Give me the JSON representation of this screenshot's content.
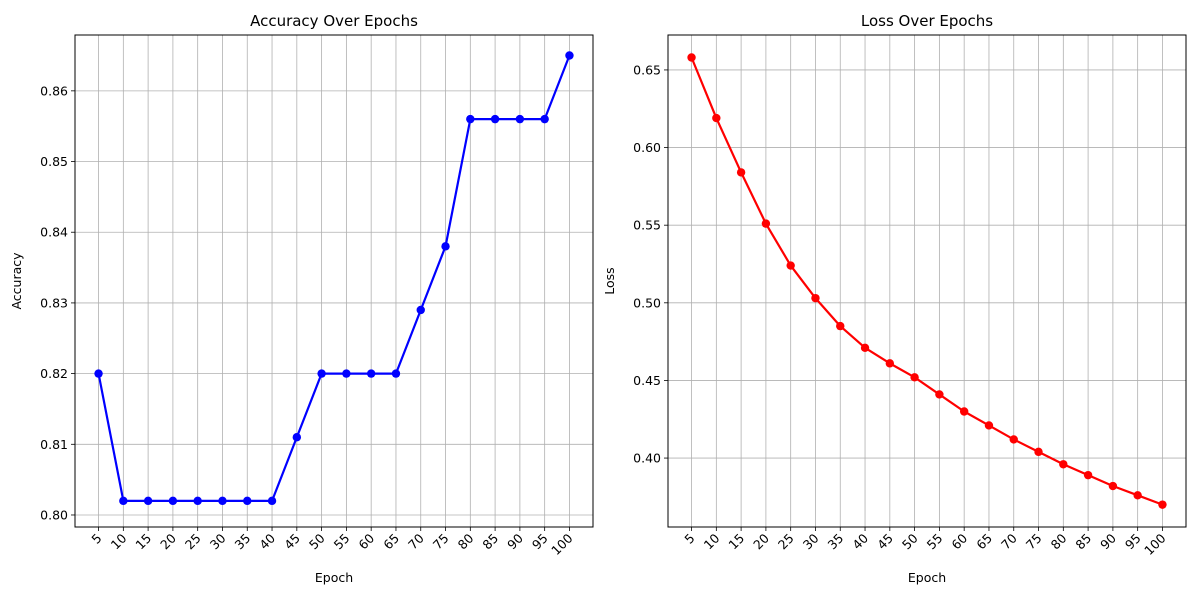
{
  "chart_data": [
    {
      "type": "line",
      "title": "Accuracy Over Epochs",
      "xlabel": "Epoch",
      "ylabel": "Accuracy",
      "x": [
        5,
        10,
        15,
        20,
        25,
        30,
        35,
        40,
        45,
        50,
        55,
        60,
        65,
        70,
        75,
        80,
        85,
        90,
        95,
        100
      ],
      "xtick_labels": [
        "5",
        "10",
        "15",
        "20",
        "25",
        "30",
        "35",
        "40",
        "45",
        "50",
        "55",
        "60",
        "65",
        "70",
        "75",
        "80",
        "85",
        "90",
        "95",
        "100"
      ],
      "series": [
        {
          "color": "#0000ff",
          "values": [
            0.82,
            0.802,
            0.802,
            0.802,
            0.802,
            0.802,
            0.802,
            0.802,
            0.811,
            0.82,
            0.82,
            0.82,
            0.82,
            0.829,
            0.838,
            0.856,
            0.856,
            0.856,
            0.856,
            0.865
          ]
        }
      ],
      "ylim": [
        0.7983,
        0.8679
      ],
      "yticks": [
        0.8,
        0.81,
        0.82,
        0.83,
        0.84,
        0.85,
        0.86
      ],
      "ytick_labels": [
        "0.80",
        "0.81",
        "0.82",
        "0.83",
        "0.84",
        "0.85",
        "0.86"
      ],
      "grid": true,
      "legend": "none"
    },
    {
      "type": "line",
      "title": "Loss Over Epochs",
      "xlabel": "Epoch",
      "ylabel": "Loss",
      "x": [
        5,
        10,
        15,
        20,
        25,
        30,
        35,
        40,
        45,
        50,
        55,
        60,
        65,
        70,
        75,
        80,
        85,
        90,
        95,
        100
      ],
      "xtick_labels": [
        "5",
        "10",
        "15",
        "20",
        "25",
        "30",
        "35",
        "40",
        "45",
        "50",
        "55",
        "60",
        "65",
        "70",
        "75",
        "80",
        "85",
        "90",
        "95",
        "100"
      ],
      "series": [
        {
          "color": "#ff0000",
          "values": [
            0.658,
            0.619,
            0.584,
            0.551,
            0.524,
            0.503,
            0.485,
            0.471,
            0.461,
            0.452,
            0.441,
            0.43,
            0.421,
            0.412,
            0.404,
            0.396,
            0.389,
            0.382,
            0.376,
            0.37
          ]
        }
      ],
      "ylim": [
        0.3556,
        0.6725
      ],
      "yticks": [
        0.4,
        0.45,
        0.5,
        0.55,
        0.6,
        0.65
      ],
      "ytick_labels": [
        "0.40",
        "0.45",
        "0.50",
        "0.55",
        "0.60",
        "0.65"
      ],
      "grid": true,
      "legend": "none"
    }
  ]
}
